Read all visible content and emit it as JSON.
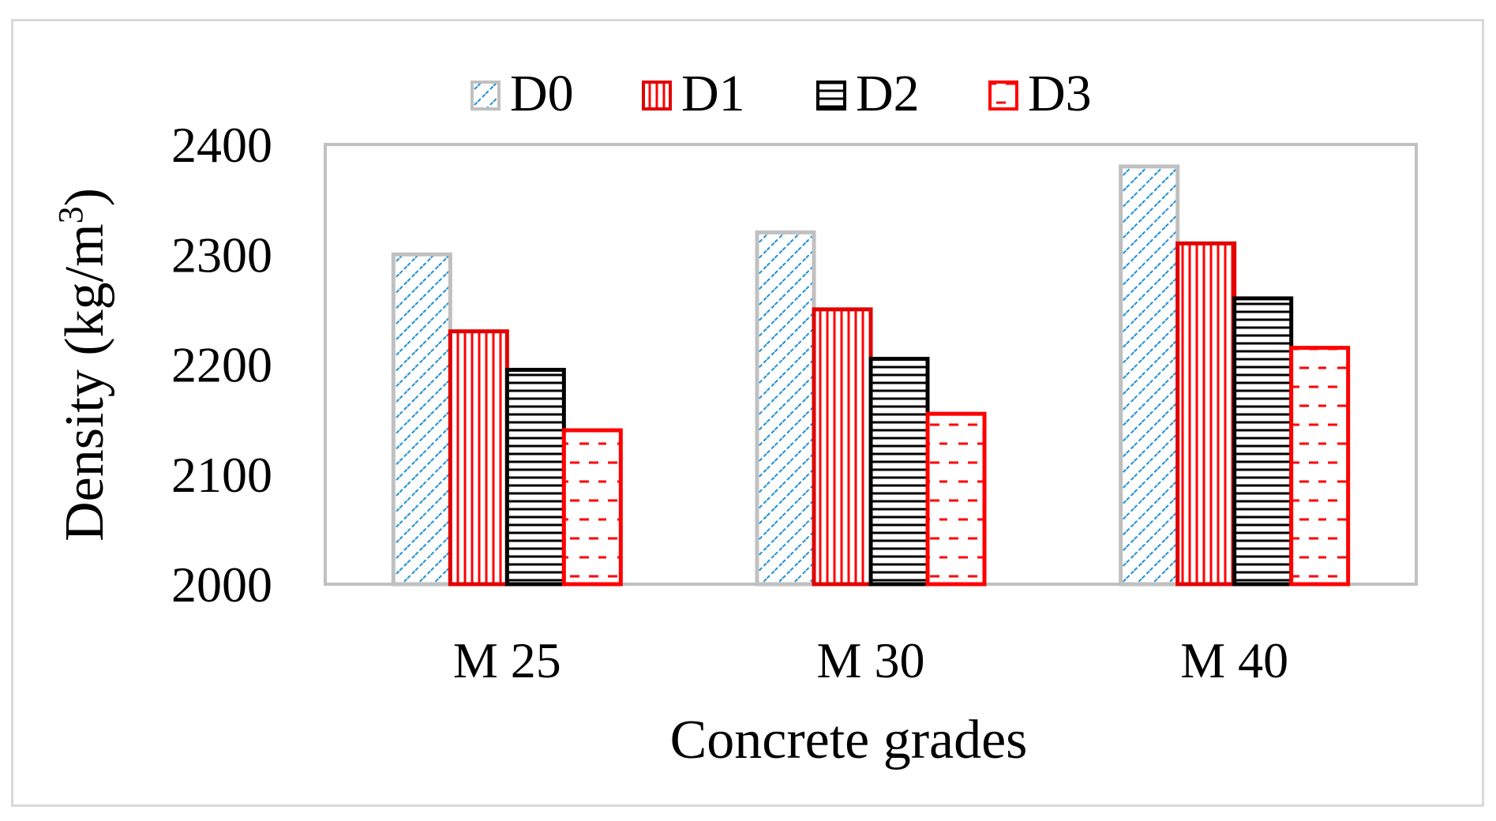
{
  "chart_data": {
    "type": "bar",
    "title": "",
    "xlabel": "Concrete grades",
    "ylabel": "Density (kg/m",
    "ylabel_superscript": "3",
    "ylabel_suffix": ")",
    "categories": [
      "M 25",
      "M 30",
      "M 40"
    ],
    "series": [
      {
        "name": "D0",
        "values": [
          2300,
          2320,
          2380
        ],
        "fill": "#1f8fd6",
        "stroke": "#c0c0c0",
        "pattern": "diagonal"
      },
      {
        "name": "D1",
        "values": [
          2230,
          2250,
          2310
        ],
        "fill": "#ff0000",
        "stroke": "#e00000",
        "pattern": "vertical"
      },
      {
        "name": "D2",
        "values": [
          2195,
          2205,
          2260
        ],
        "fill": "#000000",
        "stroke": "#000000",
        "pattern": "horizontal"
      },
      {
        "name": "D3",
        "values": [
          2140,
          2155,
          2215
        ],
        "fill": "#ff0000",
        "stroke": "#ff0000",
        "pattern": "dash"
      }
    ],
    "ylim": [
      2000,
      2400
    ],
    "yticks": [
      2000,
      2100,
      2200,
      2300,
      2400
    ],
    "legend_position": "top-center",
    "grid": false
  }
}
